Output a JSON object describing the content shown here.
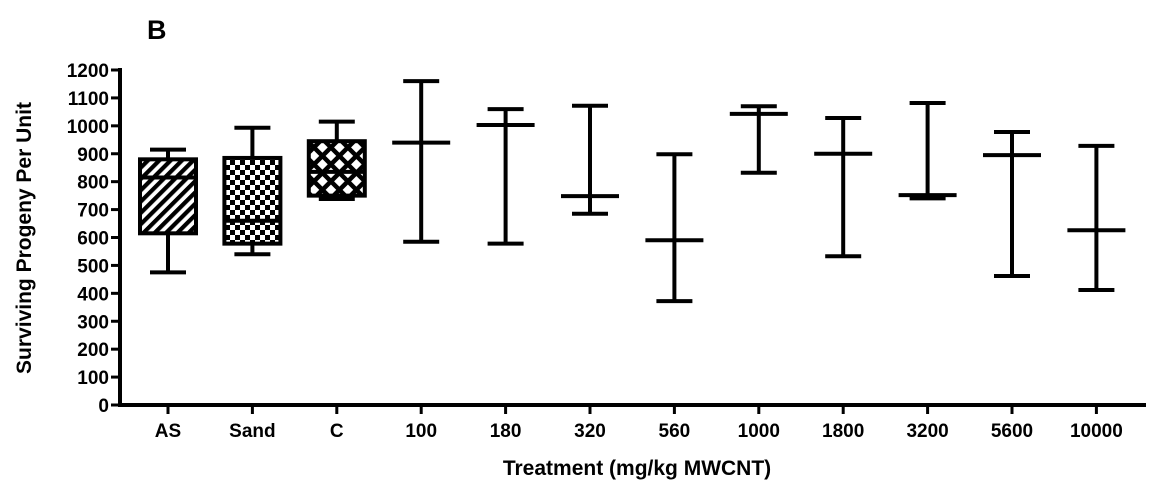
{
  "chart_data": {
    "panel_label": "B",
    "type": "box",
    "xlabel": "Treatment (mg/kg MWCNT)",
    "ylabel": "Surviving Progeny Per Unit",
    "ylim": [
      0,
      1200
    ],
    "yticks": [
      0,
      100,
      200,
      300,
      400,
      500,
      600,
      700,
      800,
      900,
      1000,
      1100,
      1200
    ],
    "grid": false,
    "categories": [
      "AS",
      "Sand",
      "C",
      "100",
      "180",
      "320",
      "560",
      "1000",
      "1800",
      "3200",
      "5600",
      "10000"
    ],
    "boxes": [
      {
        "category": "AS",
        "min": 475,
        "q1": 615,
        "median": 815,
        "q3": 880,
        "max": 915,
        "fill": "diagonal-hatch"
      },
      {
        "category": "Sand",
        "min": 540,
        "q1": 578,
        "median": 660,
        "q3": 885,
        "max": 993,
        "fill": "checkerboard"
      },
      {
        "category": "C",
        "min": 738,
        "q1": 750,
        "median": 835,
        "q3": 945,
        "max": 1015,
        "fill": "crosshatch"
      },
      {
        "category": "100",
        "min": 585,
        "median": 940,
        "max": 1160
      },
      {
        "category": "180",
        "min": 578,
        "median": 1003,
        "max": 1060
      },
      {
        "category": "320",
        "min": 685,
        "median": 748,
        "max": 1072
      },
      {
        "category": "560",
        "min": 372,
        "median": 590,
        "max": 898
      },
      {
        "category": "1000",
        "min": 832,
        "median": 1043,
        "max": 1070
      },
      {
        "category": "1800",
        "min": 533,
        "median": 900,
        "max": 1028
      },
      {
        "category": "3200",
        "min": 740,
        "median": 752,
        "max": 1082
      },
      {
        "category": "5600",
        "min": 462,
        "median": 895,
        "max": 978
      },
      {
        "category": "10000",
        "min": 412,
        "median": 626,
        "max": 928
      }
    ]
  }
}
